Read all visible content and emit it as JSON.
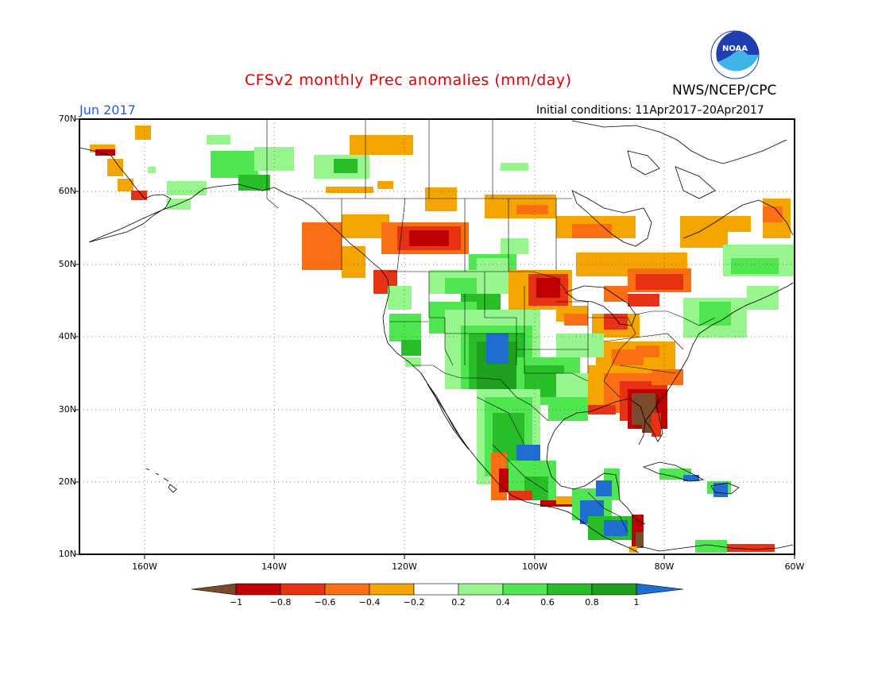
{
  "header": {
    "title": "CFSv2 monthly Prec anomalies (mm/day)",
    "agency": "NWS/NCEP/CPC",
    "month": "Jun 2017",
    "initial_conditions": "Initial conditions: 11Apr2017–20Apr2017",
    "logo_text": "NOAA"
  },
  "map": {
    "lat_range": [
      10,
      70
    ],
    "lon_range": [
      -170,
      -60
    ],
    "lat_labels": [
      "70N",
      "60N",
      "50N",
      "40N",
      "30N",
      "20N",
      "10N"
    ],
    "lon_labels": [
      "160W",
      "140W",
      "120W",
      "100W",
      "80W",
      "60W"
    ],
    "grid": "dotted"
  },
  "colorbar": {
    "ticks": [
      "−1",
      "−0.8",
      "−0.6",
      "−0.4",
      "−0.2",
      "0.2",
      "0.4",
      "0.6",
      "0.8",
      "1"
    ],
    "colors": [
      "#7a4a2a",
      "#c00000",
      "#e83214",
      "#fa6e14",
      "#f5a500",
      "#ffffff",
      "#96f58c",
      "#50e650",
      "#28be28",
      "#1ea01e",
      "#1e6ed2"
    ]
  },
  "anomaly_colors": {
    "dry_extreme": "#7a4a2a",
    "dry_strong": "#c00000",
    "dry_moderate": "#e83214",
    "dry_weak": "#fa6e14",
    "dry_slight": "#f5a500",
    "wet_slight": "#96f58c",
    "wet_weak": "#50e650",
    "wet_moderate": "#28be28",
    "wet_strong": "#1ea01e",
    "wet_extreme": "#1e6ed2"
  }
}
